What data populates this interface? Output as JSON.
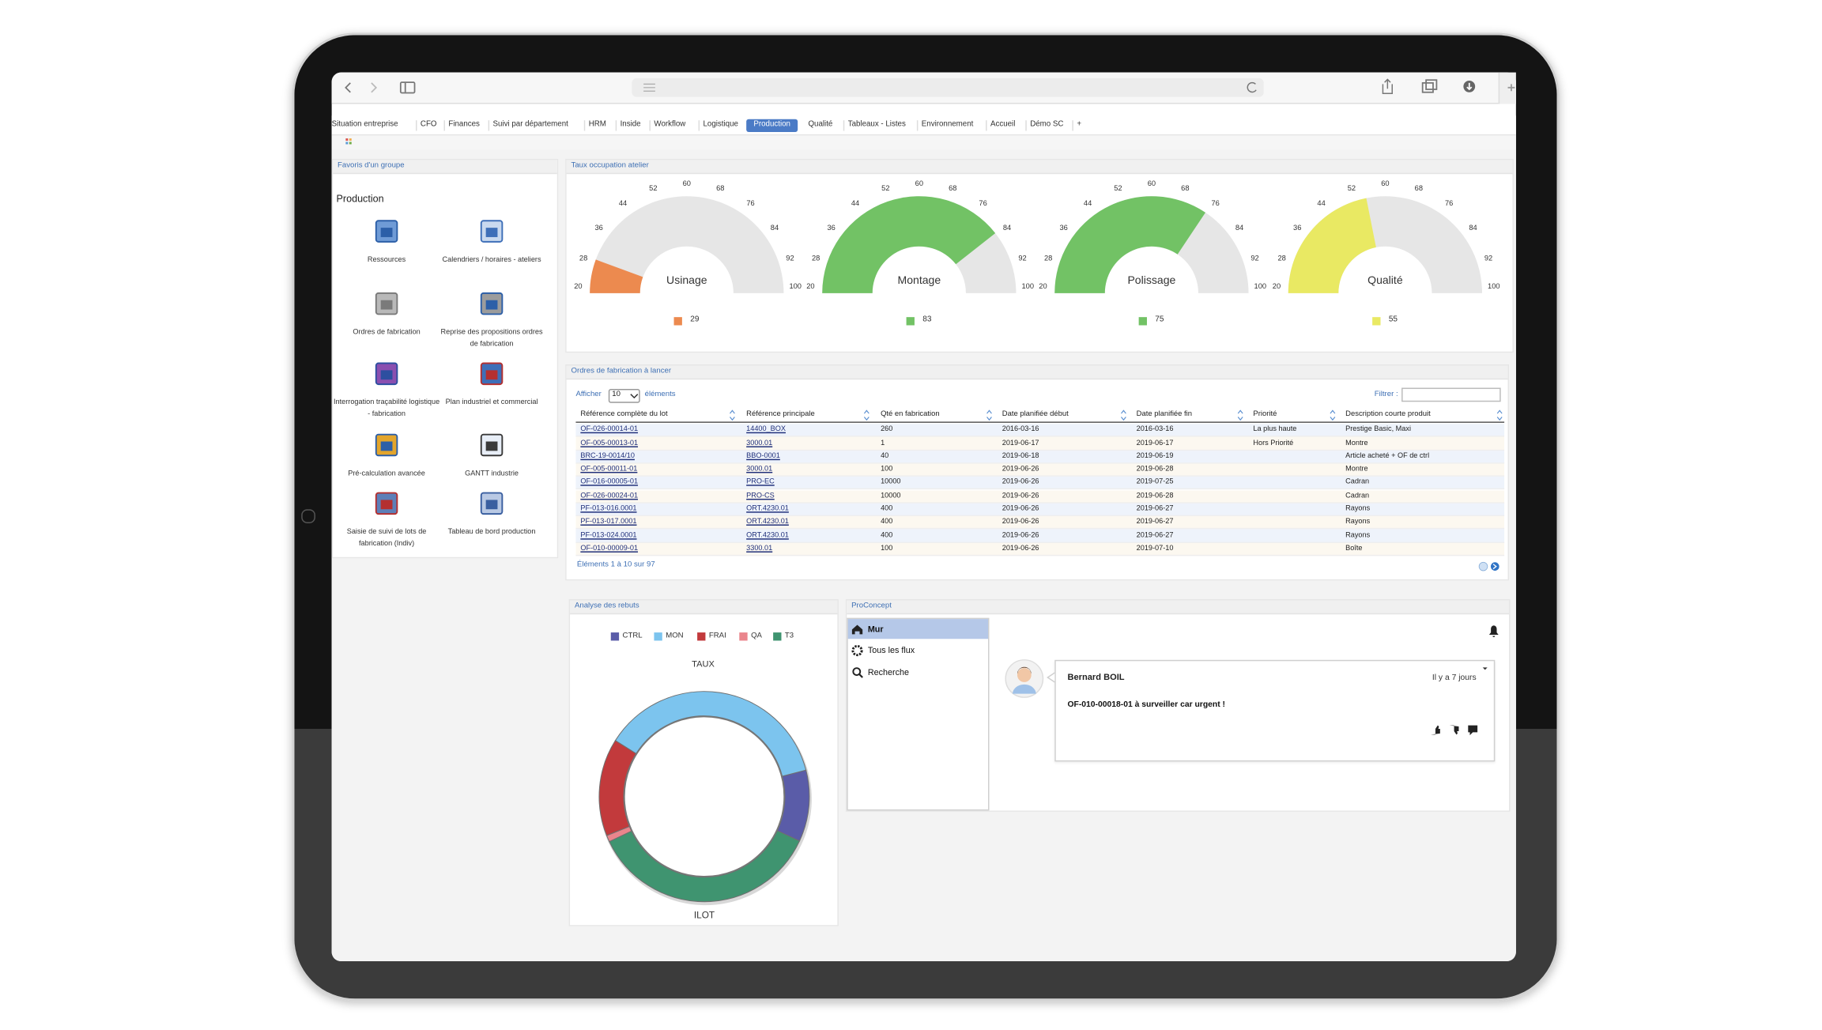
{
  "browser": {
    "tabs": [
      "Situation entreprise",
      "CFO",
      "Finances",
      "Suivi par département",
      "HRM",
      "Inside",
      "Workflow",
      "Logistique",
      "Production",
      "Qualité",
      "Tableaux - Listes",
      "Environnement",
      "Accueil",
      "Démo SC",
      "+"
    ],
    "active_tab_index": 8
  },
  "favorites": {
    "title": "Favoris d'un groupe",
    "group": "Production",
    "items": [
      "Ressources",
      "Calendriers / horaires - ateliers",
      "Ordres de fabrication",
      "Reprise des propositions ordres de fabrication",
      "Interrogation traçabilité logistique - fabrication",
      "Plan industriel et commercial",
      "Pré-calculation avancée",
      "GANTT industrie",
      "Saisie de suivi de lots de fabrication (Indiv)",
      "Tableau de bord production"
    ]
  },
  "gauges": {
    "type": "gauge",
    "title": "Taux occupation atelier",
    "ylim": [
      20,
      100
    ],
    "yticks": [
      20,
      28,
      36,
      44,
      52,
      60,
      68,
      76,
      84,
      92,
      100
    ],
    "series": [
      {
        "name": "Usinage",
        "color": "#ec8a4f",
        "value": 29
      },
      {
        "name": "Montage",
        "color": "#72c265",
        "value": 83
      },
      {
        "name": "Polissage",
        "color": "#72c265",
        "value": 75
      },
      {
        "name": "Qualité",
        "color": "#e9e963",
        "value": 55
      }
    ]
  },
  "orders": {
    "title": "Ordres de fabrication à lancer",
    "show_label": "Afficher",
    "page_length": "10",
    "entries_label": "éléments",
    "filter_label": "Filtrer :",
    "columns": [
      "Référence complète du lot",
      "Référence principale",
      "Qté en fabrication",
      "Date planifiée début",
      "Date planifiée fin",
      "Priorité",
      "Description courte produit"
    ],
    "rows": [
      [
        "OF-026-00014-01",
        "14400_BOX",
        "260",
        "2016-03-16",
        "2016-03-16",
        "La plus haute",
        "Prestige Basic, Maxi"
      ],
      [
        "OF-005-00013-01",
        "3000.01",
        "1",
        "2019-06-17",
        "2019-06-17",
        "Hors Priorité",
        "Montre"
      ],
      [
        "BRC-19-0014/10",
        "BBO-0001",
        "40",
        "2019-06-18",
        "2019-06-19",
        null,
        "Article acheté + OF de ctrl"
      ],
      [
        "OF-005-00011-01",
        "3000.01",
        "100",
        "2019-06-26",
        "2019-06-28",
        null,
        "Montre"
      ],
      [
        "OF-016-00005-01",
        "PRO-EC",
        "10000",
        "2019-06-26",
        "2019-07-25",
        null,
        "Cadran"
      ],
      [
        "OF-026-00024-01",
        "PRO-CS",
        "10000",
        "2019-06-26",
        "2019-06-28",
        null,
        "Cadran"
      ],
      [
        "PF-013-016.0001",
        "ORT.4230.01",
        "400",
        "2019-06-26",
        "2019-06-27",
        null,
        "Rayons"
      ],
      [
        "PF-013-017.0001",
        "ORT.4230.01",
        "400",
        "2019-06-26",
        "2019-06-27",
        null,
        "Rayons"
      ],
      [
        "PF-013-024.0001",
        "ORT.4230.01",
        "400",
        "2019-06-26",
        "2019-06-27",
        null,
        "Rayons"
      ],
      [
        "OF-010-00009-01",
        "3300.01",
        "100",
        "2019-06-26",
        "2019-07-10",
        null,
        "Boîte"
      ]
    ],
    "footer": "Éléments 1 à 10 sur 97"
  },
  "rebuts": {
    "type": "donut",
    "title": "Analyse des rebuts",
    "value_label": "TAUX",
    "category_label": "ILOT",
    "series": [
      {
        "name": "CTRL",
        "color": "#5a5ca8",
        "value": 11
      },
      {
        "name": "MON",
        "color": "#7cc4ee",
        "value": 37
      },
      {
        "name": "FRAI",
        "color": "#c23a3c",
        "value": 15
      },
      {
        "name": "QA",
        "color": "#ea858c",
        "value": 1
      },
      {
        "name": "T3",
        "color": "#3f9470",
        "value": 36
      }
    ]
  },
  "social": {
    "title": "ProConcept",
    "menu": [
      "Mur",
      "Tous les flux",
      "Recherche"
    ],
    "post": {
      "author": "Bernard BOIL",
      "time": "Il y a 7 jours",
      "text": "OF-010-00018-01 à surveiller car urgent !"
    }
  }
}
